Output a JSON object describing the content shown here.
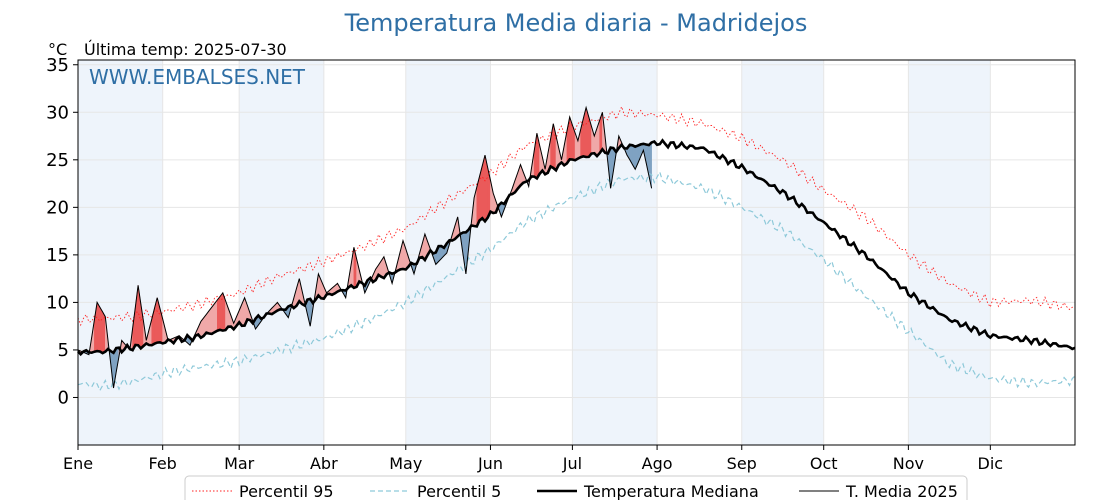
{
  "chart_data": {
    "type": "line",
    "title": "Temperatura Media diaria - Madridejos",
    "unit_label": "°C",
    "subtitle": "Última temp: 2025-07-30",
    "watermark": "WWW.EMBALSES.NET",
    "ylim": [
      -5,
      35.5
    ],
    "yticks": [
      0,
      5,
      10,
      15,
      20,
      25,
      30,
      35
    ],
    "xlim": [
      1,
      366
    ],
    "month_labels": [
      "Ene",
      "Feb",
      "Mar",
      "Abr",
      "May",
      "Jun",
      "Jul",
      "Ago",
      "Sep",
      "Oct",
      "Nov",
      "Dic"
    ],
    "month_starts": [
      1,
      32,
      60,
      91,
      121,
      152,
      182,
      213,
      244,
      274,
      305,
      335
    ],
    "grid": true,
    "legend_position": "bottom",
    "colors": {
      "p95": "#ff2020",
      "p5": "#8ec9d9",
      "median": "#000000",
      "current": "#000000",
      "above": "#f0a8a8",
      "above_strong": "#ea5a5a",
      "below": "#7fa2c2",
      "shade": "#eef4fb",
      "title": "#2f6fa5"
    },
    "series": [
      {
        "name": "Percentil 95",
        "style": "dotted-red",
        "x": [
          1,
          10,
          20,
          32,
          45,
          60,
          75,
          91,
          105,
          121,
          135,
          152,
          165,
          182,
          200,
          213,
          230,
          244,
          260,
          274,
          290,
          305,
          320,
          335,
          350,
          366
        ],
        "values": [
          8.2,
          8.3,
          8.5,
          9.0,
          9.8,
          11.0,
          12.8,
          14.3,
          15.8,
          17.8,
          20.5,
          23.5,
          26.5,
          28.5,
          30.0,
          29.7,
          28.8,
          27.3,
          24.8,
          21.8,
          18.8,
          15.0,
          12.0,
          10.0,
          10.2,
          9.4
        ]
      },
      {
        "name": "Percentil 5",
        "style": "dashed-lightblue",
        "x": [
          1,
          10,
          20,
          32,
          45,
          60,
          75,
          91,
          105,
          121,
          135,
          152,
          165,
          182,
          200,
          213,
          230,
          244,
          260,
          274,
          290,
          305,
          320,
          335,
          350,
          366
        ],
        "values": [
          1.5,
          1.2,
          1.6,
          2.5,
          3.2,
          3.8,
          5.0,
          6.2,
          7.8,
          10.0,
          12.5,
          15.6,
          18.5,
          21.0,
          23.0,
          23.2,
          22.0,
          20.0,
          17.5,
          14.5,
          10.5,
          7.0,
          3.5,
          2.0,
          1.5,
          1.8
        ]
      },
      {
        "name": "Temperatura Mediana",
        "style": "thick-black",
        "x": [
          1,
          10,
          20,
          32,
          45,
          60,
          75,
          91,
          105,
          121,
          135,
          152,
          165,
          182,
          200,
          213,
          230,
          244,
          260,
          274,
          290,
          305,
          320,
          335,
          350,
          366
        ],
        "values": [
          4.8,
          4.8,
          5.2,
          5.8,
          6.4,
          7.6,
          9.2,
          10.6,
          12.0,
          13.6,
          16.0,
          19.2,
          22.8,
          25.0,
          26.3,
          26.8,
          26.2,
          24.2,
          21.4,
          18.4,
          14.8,
          11.0,
          8.2,
          6.5,
          6.0,
          5.2
        ]
      },
      {
        "name": "T. Media 2025",
        "style": "thin-black",
        "x": [
          1,
          5,
          8,
          11,
          14,
          17,
          20,
          23,
          26,
          30,
          34,
          38,
          42,
          46,
          50,
          54,
          58,
          62,
          66,
          70,
          74,
          78,
          82,
          86,
          89,
          92,
          96,
          99,
          102,
          106,
          110,
          113,
          116,
          120,
          124,
          128,
          132,
          136,
          140,
          143,
          146,
          150,
          153,
          156,
          160,
          163,
          166,
          169,
          172,
          175,
          178,
          181,
          184,
          187,
          190,
          193,
          196,
          199,
          202,
          205,
          208,
          211
        ],
        "values": [
          5.0,
          4.5,
          10.0,
          8.5,
          1.0,
          6.0,
          5.0,
          11.8,
          6.0,
          10.5,
          6.0,
          6.5,
          5.5,
          8.0,
          9.5,
          11.0,
          7.8,
          10.5,
          7.2,
          8.8,
          10.0,
          8.4,
          12.5,
          7.5,
          13.0,
          11.0,
          12.0,
          10.5,
          15.8,
          11.0,
          13.5,
          14.8,
          12.0,
          16.5,
          13.0,
          17.2,
          14.0,
          15.2,
          19.0,
          13.0,
          21.0,
          25.5,
          21.5,
          19.0,
          22.0,
          24.5,
          22.2,
          27.8,
          24.0,
          28.8,
          25.0,
          29.5,
          27.0,
          30.5,
          27.5,
          30.0,
          22.0,
          27.5,
          25.5,
          24.0,
          26.0,
          22.0
        ]
      }
    ]
  }
}
